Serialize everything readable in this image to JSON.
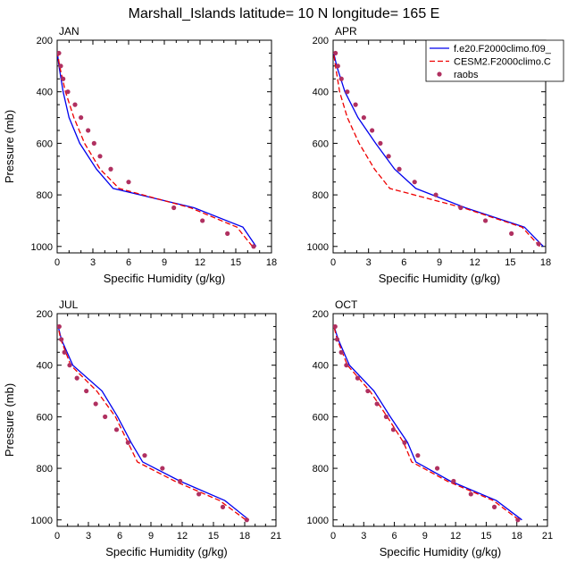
{
  "title": "Marshall_Islands  latitude= 10 N longitude= 165 E",
  "colors": {
    "model1": "#0000ee",
    "model2": "#ee0000",
    "obs": "#b03060"
  },
  "legend": {
    "entries": [
      "f.e20.F2000climo.f09_",
      "CESM2.F2000climo.C",
      "raobs"
    ],
    "placement": "top-right of APR panel"
  },
  "chart_data": [
    {
      "type": "line",
      "panel": "JAN",
      "xlabel": "Specific Humidity (g/kg)",
      "ylabel": "Pressure (mb)",
      "xlim": [
        0,
        18
      ],
      "ylim": [
        1025,
        200
      ],
      "y_reversed": true,
      "xticks": [
        0,
        3,
        6,
        9,
        12,
        15,
        18
      ],
      "yticks": [
        200,
        400,
        600,
        800,
        1000
      ],
      "y": [
        1000,
        925,
        850,
        775,
        700,
        600,
        500,
        400,
        300,
        250
      ],
      "series": [
        {
          "name": "f.e20.F2000climo.f09_",
          "style": "solid",
          "x": [
            16.7,
            15.6,
            11.5,
            4.7,
            3.3,
            1.9,
            1.0,
            0.5,
            0.15,
            0.02
          ]
        },
        {
          "name": "CESM2.F2000climo.C",
          "style": "dashed",
          "x": [
            16.4,
            15.1,
            11.2,
            5.2,
            3.6,
            2.3,
            1.4,
            0.7,
            0.2,
            0.04
          ]
        },
        {
          "name": "raobs",
          "style": "markers",
          "points": [
            [
              16.5,
              1000
            ],
            [
              14.3,
              950
            ],
            [
              12.2,
              900
            ],
            [
              9.8,
              850
            ],
            [
              6.0,
              750
            ],
            [
              4.5,
              700
            ],
            [
              3.6,
              650
            ],
            [
              3.1,
              600
            ],
            [
              2.6,
              550
            ],
            [
              2.0,
              500
            ],
            [
              1.5,
              450
            ],
            [
              0.9,
              400
            ],
            [
              0.5,
              350
            ],
            [
              0.3,
              300
            ],
            [
              0.15,
              250
            ]
          ]
        }
      ]
    },
    {
      "type": "line",
      "panel": "APR",
      "xlabel": "Specific Humidity (g/kg)",
      "ylabel": "",
      "xlim": [
        0,
        18
      ],
      "ylim": [
        1025,
        200
      ],
      "y_reversed": true,
      "xticks": [
        0,
        3,
        6,
        9,
        12,
        15,
        18
      ],
      "yticks": [
        200,
        400,
        600,
        800,
        1000
      ],
      "y": [
        1000,
        925,
        850,
        775,
        700,
        600,
        500,
        400,
        300,
        250
      ],
      "series": [
        {
          "name": "f.e20.F2000climo.f09_",
          "style": "solid",
          "x": [
            17.8,
            16.2,
            11.2,
            7.0,
            5.2,
            3.6,
            2.1,
            1.0,
            0.3,
            0.05
          ]
        },
        {
          "name": "CESM2.F2000climo.C",
          "style": "dashed",
          "x": [
            17.5,
            16.0,
            11.0,
            4.8,
            3.5,
            2.2,
            1.2,
            0.55,
            0.2,
            0.04
          ]
        },
        {
          "name": "raobs",
          "style": "markers",
          "points": [
            [
              17.4,
              990
            ],
            [
              15.1,
              950
            ],
            [
              12.9,
              900
            ],
            [
              10.8,
              850
            ],
            [
              8.7,
              800
            ],
            [
              6.9,
              750
            ],
            [
              5.6,
              700
            ],
            [
              4.7,
              650
            ],
            [
              4.0,
              600
            ],
            [
              3.3,
              550
            ],
            [
              2.6,
              500
            ],
            [
              1.9,
              450
            ],
            [
              1.2,
              400
            ],
            [
              0.7,
              350
            ],
            [
              0.4,
              300
            ],
            [
              0.2,
              250
            ]
          ]
        }
      ]
    },
    {
      "type": "line",
      "panel": "JUL",
      "xlabel": "Specific Humidity (g/kg)",
      "ylabel": "Pressure (mb)",
      "xlim": [
        0,
        21
      ],
      "ylim": [
        1025,
        200
      ],
      "y_reversed": true,
      "xticks": [
        0,
        3,
        6,
        9,
        12,
        15,
        18,
        21
      ],
      "yticks": [
        200,
        400,
        600,
        800,
        1000
      ],
      "y": [
        1000,
        925,
        850,
        775,
        700,
        600,
        500,
        400,
        300,
        250
      ],
      "series": [
        {
          "name": "f.e20.F2000climo.f09_",
          "style": "solid",
          "x": [
            18.4,
            16.1,
            11.8,
            8.2,
            7.1,
            5.8,
            4.3,
            1.5,
            0.4,
            0.1
          ]
        },
        {
          "name": "CESM2.F2000climo.C",
          "style": "dashed",
          "x": [
            18.1,
            15.6,
            11.3,
            7.7,
            6.8,
            5.6,
            3.8,
            1.3,
            0.35,
            0.08
          ]
        },
        {
          "name": "raobs",
          "style": "markers",
          "points": [
            [
              18.2,
              1000
            ],
            [
              15.9,
              950
            ],
            [
              13.6,
              900
            ],
            [
              11.8,
              850
            ],
            [
              10.1,
              800
            ],
            [
              8.4,
              750
            ],
            [
              6.8,
              700
            ],
            [
              5.7,
              650
            ],
            [
              4.6,
              600
            ],
            [
              3.7,
              550
            ],
            [
              2.8,
              500
            ],
            [
              1.9,
              450
            ],
            [
              1.2,
              400
            ],
            [
              0.7,
              350
            ],
            [
              0.4,
              300
            ],
            [
              0.2,
              250
            ]
          ]
        }
      ]
    },
    {
      "type": "line",
      "panel": "OCT",
      "xlabel": "Specific Humidity (g/kg)",
      "ylabel": "",
      "xlim": [
        0,
        21
      ],
      "ylim": [
        1025,
        200
      ],
      "y_reversed": true,
      "xticks": [
        0,
        3,
        6,
        9,
        12,
        15,
        18,
        21
      ],
      "yticks": [
        200,
        400,
        600,
        800,
        1000
      ],
      "y": [
        1000,
        925,
        850,
        775,
        700,
        600,
        500,
        400,
        300,
        250
      ],
      "series": [
        {
          "name": "f.e20.F2000climo.f09_",
          "style": "solid",
          "x": [
            18.5,
            16.0,
            11.5,
            8.1,
            7.3,
            5.6,
            4.0,
            1.6,
            0.5,
            0.1
          ]
        },
        {
          "name": "CESM2.F2000climo.C",
          "style": "dashed",
          "x": [
            18.2,
            15.7,
            11.2,
            7.7,
            6.9,
            5.3,
            3.6,
            1.4,
            0.4,
            0.08
          ]
        },
        {
          "name": "raobs",
          "style": "markers",
          "points": [
            [
              18.1,
              1000
            ],
            [
              15.8,
              950
            ],
            [
              13.5,
              900
            ],
            [
              11.8,
              850
            ],
            [
              10.2,
              800
            ],
            [
              8.3,
              750
            ],
            [
              7.0,
              700
            ],
            [
              5.9,
              650
            ],
            [
              5.2,
              600
            ],
            [
              4.3,
              550
            ],
            [
              3.4,
              500
            ],
            [
              2.4,
              450
            ],
            [
              1.3,
              400
            ],
            [
              0.8,
              350
            ],
            [
              0.4,
              300
            ],
            [
              0.2,
              250
            ]
          ]
        }
      ]
    }
  ]
}
